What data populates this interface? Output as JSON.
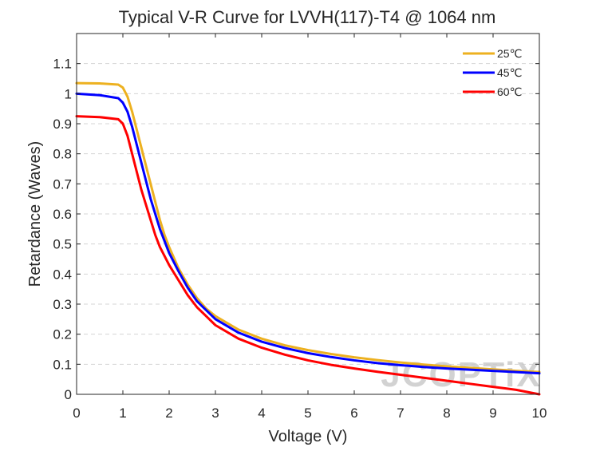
{
  "chart_data": {
    "type": "line",
    "title": "Typical V-R Curve for LVVH(117)-T4 @ 1064 nm",
    "xlabel": "Voltage (V)",
    "ylabel": "Retardance (Waves)",
    "xlim": [
      0,
      10
    ],
    "ylim": [
      0,
      1.2
    ],
    "x_ticks": [
      "0",
      "1",
      "2",
      "3",
      "4",
      "5",
      "6",
      "7",
      "8",
      "9",
      "10"
    ],
    "y_ticks": [
      "0",
      "0.1",
      "0.2",
      "0.3",
      "0.4",
      "0.5",
      "0.6",
      "0.7",
      "0.8",
      "0.9",
      "1",
      "1.1"
    ],
    "y_tick_values": [
      0,
      0.1,
      0.2,
      0.3,
      0.4,
      0.5,
      0.6,
      0.7,
      0.8,
      0.9,
      1.0,
      1.1
    ],
    "grid": {
      "horizontal": true,
      "style": "dashed"
    },
    "legend_position": "top-right",
    "series": [
      {
        "name": "25℃",
        "color": "#EDB120",
        "x": [
          0,
          0.5,
          0.9,
          1.0,
          1.1,
          1.2,
          1.3,
          1.4,
          1.5,
          1.6,
          1.7,
          1.8,
          1.9,
          2.0,
          2.2,
          2.4,
          2.6,
          2.8,
          3.0,
          3.5,
          4.0,
          4.5,
          5.0,
          5.5,
          6.0,
          6.5,
          7.0,
          7.5,
          8.0,
          8.5,
          9.0,
          9.5,
          10.0
        ],
        "y": [
          1.035,
          1.034,
          1.03,
          1.02,
          0.99,
          0.94,
          0.88,
          0.82,
          0.76,
          0.7,
          0.64,
          0.58,
          0.53,
          0.49,
          0.42,
          0.365,
          0.32,
          0.285,
          0.26,
          0.215,
          0.185,
          0.163,
          0.147,
          0.134,
          0.123,
          0.114,
          0.106,
          0.099,
          0.093,
          0.088,
          0.083,
          0.078,
          0.074
        ]
      },
      {
        "name": "45℃",
        "color": "#0000FF",
        "x": [
          0,
          0.5,
          0.9,
          1.0,
          1.1,
          1.2,
          1.3,
          1.4,
          1.5,
          1.6,
          1.7,
          1.8,
          1.9,
          2.0,
          2.2,
          2.4,
          2.6,
          2.8,
          3.0,
          3.5,
          4.0,
          4.5,
          5.0,
          5.5,
          6.0,
          6.5,
          7.0,
          7.5,
          8.0,
          8.5,
          9.0,
          9.5,
          10.0
        ],
        "y": [
          1.0,
          0.995,
          0.985,
          0.97,
          0.94,
          0.89,
          0.83,
          0.77,
          0.71,
          0.65,
          0.6,
          0.55,
          0.51,
          0.47,
          0.41,
          0.355,
          0.31,
          0.28,
          0.25,
          0.205,
          0.175,
          0.154,
          0.137,
          0.124,
          0.113,
          0.104,
          0.097,
          0.091,
          0.086,
          0.082,
          0.078,
          0.074,
          0.07
        ]
      },
      {
        "name": "60℃",
        "color": "#FF0000",
        "x": [
          0,
          0.5,
          0.9,
          1.0,
          1.1,
          1.2,
          1.3,
          1.4,
          1.5,
          1.6,
          1.7,
          1.8,
          1.9,
          2.0,
          2.2,
          2.4,
          2.6,
          2.8,
          3.0,
          3.5,
          4.0,
          4.5,
          5.0,
          5.5,
          6.0,
          6.5,
          7.0,
          7.5,
          8.0,
          8.5,
          9.0,
          9.5,
          10.0
        ],
        "y": [
          0.925,
          0.922,
          0.915,
          0.9,
          0.86,
          0.8,
          0.74,
          0.68,
          0.63,
          0.58,
          0.53,
          0.49,
          0.46,
          0.43,
          0.38,
          0.33,
          0.29,
          0.26,
          0.23,
          0.185,
          0.155,
          0.132,
          0.113,
          0.098,
          0.086,
          0.075,
          0.065,
          0.055,
          0.045,
          0.035,
          0.025,
          0.015,
          0.0
        ]
      }
    ]
  },
  "watermark": {
    "text": "JCOPTiX"
  }
}
